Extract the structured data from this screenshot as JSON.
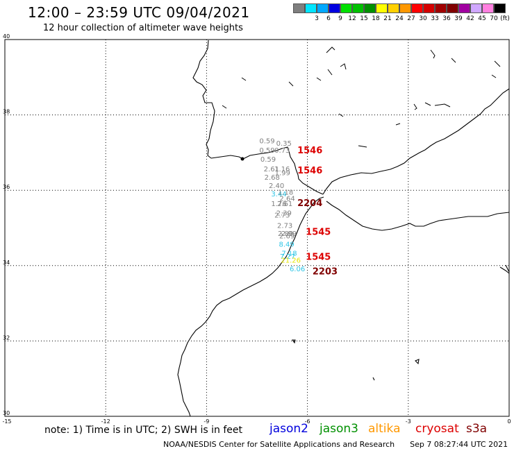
{
  "title": "12:00 – 23:59 UTC 09/04/2021",
  "subtitle": "12 hour collection of altimeter wave heights",
  "legend": {
    "unit": "(ft)",
    "items": [
      {
        "label": "",
        "color": "#7f7f7f"
      },
      {
        "label": "3",
        "color": "#00e5ff"
      },
      {
        "label": "6",
        "color": "#00a8ff"
      },
      {
        "label": "9",
        "color": "#0000e0"
      },
      {
        "label": "12",
        "color": "#00e000"
      },
      {
        "label": "15",
        "color": "#00c000"
      },
      {
        "label": "18",
        "color": "#009000"
      },
      {
        "label": "21",
        "color": "#ffff00"
      },
      {
        "label": "24",
        "color": "#ffd000"
      },
      {
        "label": "27",
        "color": "#ff9800"
      },
      {
        "label": "30",
        "color": "#ff0000"
      },
      {
        "label": "33",
        "color": "#d40000"
      },
      {
        "label": "36",
        "color": "#a00000"
      },
      {
        "label": "39",
        "color": "#800000"
      },
      {
        "label": "42",
        "color": "#a000a0"
      },
      {
        "label": "45",
        "color": "#d0a8ff"
      },
      {
        "label": "70",
        "color": "#ff80e0"
      },
      {
        "label": "",
        "color": "#000000"
      }
    ]
  },
  "map": {
    "lon_range": [
      -15,
      0
    ],
    "lat_range": [
      30,
      40
    ],
    "x_ticks": [
      "-15",
      "-12",
      "-9",
      "-6",
      "-3",
      "0"
    ],
    "y_ticks": [
      "40",
      "38",
      "36",
      "34",
      "32",
      "30"
    ],
    "grid": "dotted"
  },
  "observations": [
    {
      "text": "0.59",
      "lon": -7.43,
      "lat": 37.25,
      "color": "#7f7f7f"
    },
    {
      "text": "0.35",
      "lon": -6.93,
      "lat": 37.18,
      "color": "#7f7f7f"
    },
    {
      "text": "0.59",
      "lon": -7.43,
      "lat": 37.0,
      "color": "#7f7f7f"
    },
    {
      "text": "0.73",
      "lon": -6.98,
      "lat": 37.0,
      "color": "#7f7f7f"
    },
    {
      "text": "0.59",
      "lon": -7.4,
      "lat": 36.76,
      "color": "#7f7f7f"
    },
    {
      "text": "2.61",
      "lon": -7.3,
      "lat": 36.5,
      "color": "#7f7f7f"
    },
    {
      "text": "1.16",
      "lon": -6.98,
      "lat": 36.5,
      "color": "#7f7f7f"
    },
    {
      "text": "1.99",
      "lon": -6.97,
      "lat": 36.4,
      "color": "#7f7f7f"
    },
    {
      "text": "2.68",
      "lon": -7.28,
      "lat": 36.28,
      "color": "#7f7f7f"
    },
    {
      "text": "2.40",
      "lon": -7.15,
      "lat": 36.06,
      "color": "#7f7f7f"
    },
    {
      "text": "3.44",
      "lon": -7.08,
      "lat": 35.84,
      "color": "#2ec5e6"
    },
    {
      "text": "1.18",
      "lon": -6.88,
      "lat": 35.88,
      "color": "#7f7f7f"
    },
    {
      "text": "2.64",
      "lon": -6.83,
      "lat": 35.72,
      "color": "#7f7f7f"
    },
    {
      "text": "1.76",
      "lon": -7.08,
      "lat": 35.58,
      "color": "#7f7f7f"
    },
    {
      "text": "2.61",
      "lon": -6.9,
      "lat": 35.58,
      "color": "#7f7f7f"
    },
    {
      "text": "2.39",
      "lon": -6.93,
      "lat": 35.33,
      "color": "#7f7f7f"
    },
    {
      "text": "2.73",
      "lon": -6.98,
      "lat": 35.28,
      "color": "#7f7f7f"
    },
    {
      "text": "2.73",
      "lon": -6.9,
      "lat": 35.0,
      "color": "#7f7f7f"
    },
    {
      "text": "2.80",
      "lon": -6.88,
      "lat": 34.79,
      "color": "#7f7f7f"
    },
    {
      "text": "2.99",
      "lon": -6.78,
      "lat": 34.79,
      "color": "#7f7f7f"
    },
    {
      "text": "2.69",
      "lon": -6.84,
      "lat": 34.72,
      "color": "#7f7f7f"
    },
    {
      "text": "8.49",
      "lon": -6.85,
      "lat": 34.5,
      "color": "#2ec5e6"
    },
    {
      "text": "7.18",
      "lon": -6.77,
      "lat": 34.26,
      "color": "#2ec5e6"
    },
    {
      "text": "7.27",
      "lon": -6.82,
      "lat": 34.18,
      "color": "#2ec5e6"
    },
    {
      "text": "21.26",
      "lon": -6.79,
      "lat": 34.08,
      "color": "#e6e600"
    },
    {
      "text": "6.06",
      "lon": -6.53,
      "lat": 33.85,
      "color": "#2ec5e6"
    }
  ],
  "passes": [
    {
      "text": "1546",
      "lon": -6.3,
      "lat": 36.98,
      "color": "#dd0000"
    },
    {
      "text": "1546",
      "lon": -6.3,
      "lat": 36.45,
      "color": "#dd0000"
    },
    {
      "text": "2204",
      "lon": -6.3,
      "lat": 35.58,
      "color": "#800000"
    },
    {
      "text": "1545",
      "lon": -6.05,
      "lat": 34.82,
      "color": "#dd0000"
    },
    {
      "text": "1545",
      "lon": -6.05,
      "lat": 34.15,
      "color": "#dd0000"
    },
    {
      "text": "2203",
      "lon": -5.85,
      "lat": 33.77,
      "color": "#800000"
    }
  ],
  "note": "note:  1) Time is in UTC;  2) SWH is in feet",
  "satellites": [
    {
      "name": "jason2",
      "color": "#0000dd"
    },
    {
      "name": "jason3",
      "color": "#009000"
    },
    {
      "name": "altika",
      "color": "#ff9800"
    },
    {
      "name": "cryosat",
      "color": "#dd0000"
    },
    {
      "name": "s3a",
      "color": "#800000"
    }
  ],
  "footer": {
    "credit": "NOAA/NESDIS Center for Satellite Applications and Research",
    "timestamp": "Sep  7 08:27:44 UTC 2021"
  }
}
